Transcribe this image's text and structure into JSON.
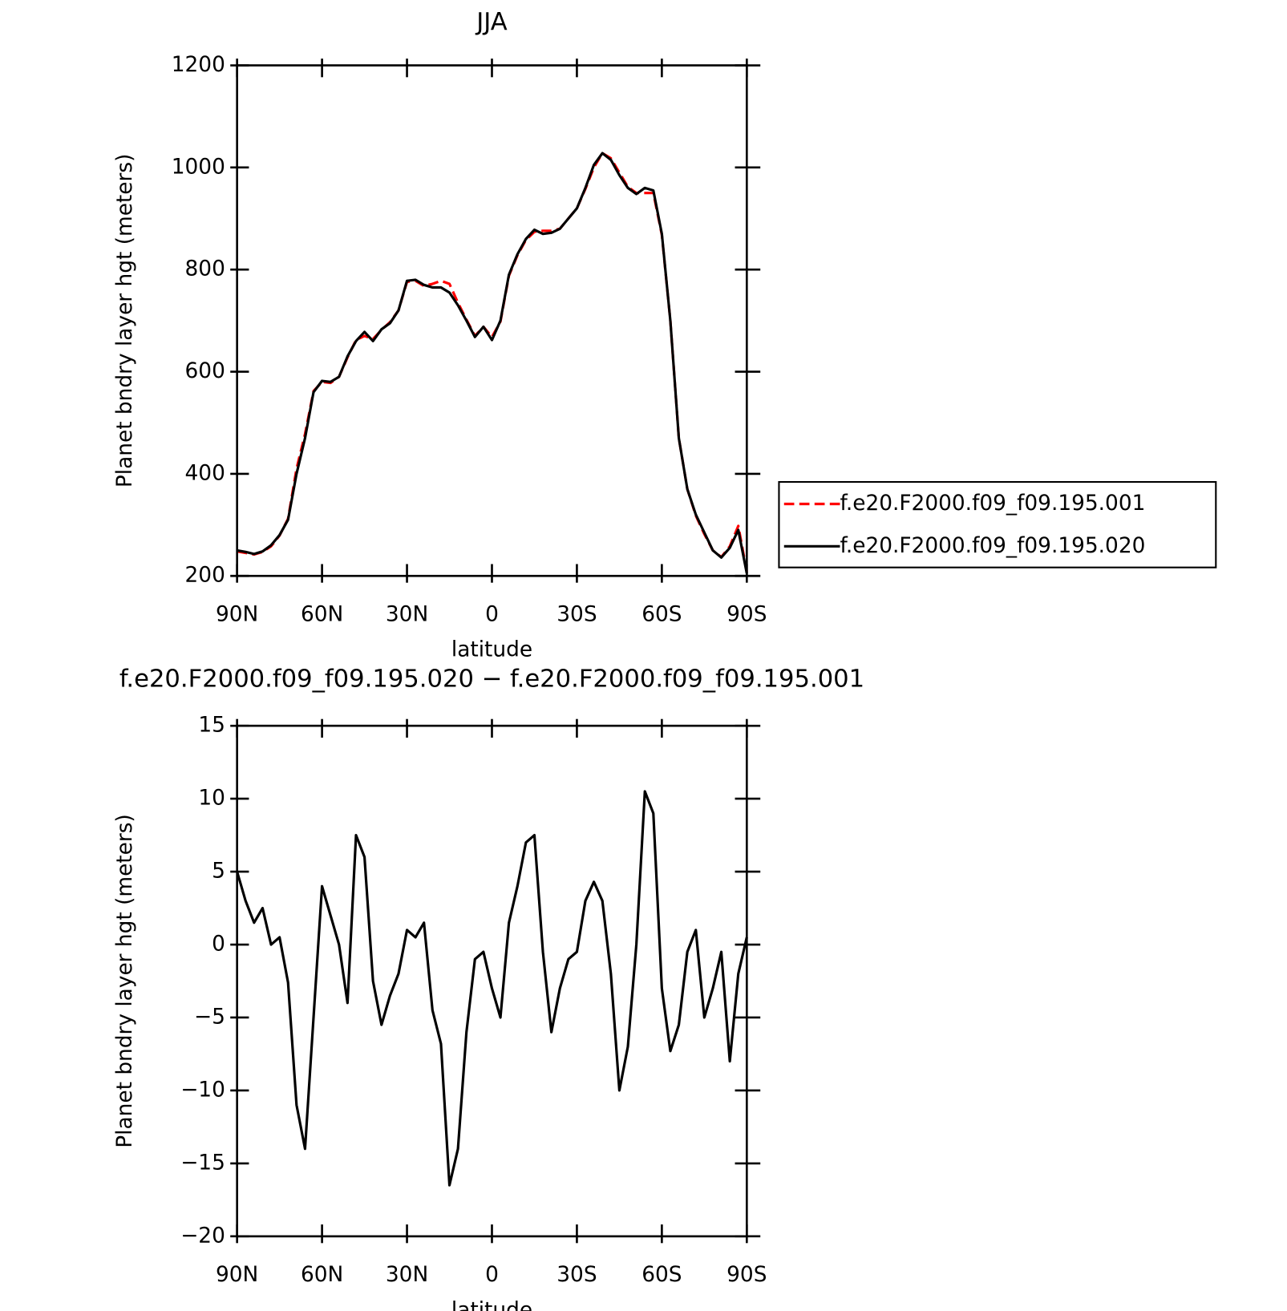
{
  "chart_data": [
    {
      "type": "line",
      "title": "JJA",
      "xlabel": "latitude",
      "ylabel": "Planet bndry layer hgt (meters)",
      "x": [
        90,
        87,
        84,
        81,
        78,
        75,
        72,
        69,
        66,
        63,
        60,
        57,
        54,
        51,
        48,
        45,
        42,
        39,
        36,
        33,
        30,
        27,
        24,
        21,
        18,
        15,
        12,
        9,
        6,
        3,
        0,
        -3,
        -6,
        -9,
        -12,
        -15,
        -18,
        -21,
        -24,
        -27,
        -30,
        -33,
        -36,
        -39,
        -42,
        -45,
        -48,
        -51,
        -54,
        -57,
        -60,
        -63,
        -66,
        -69,
        -72,
        -75,
        -78,
        -81,
        -84,
        -87,
        -90
      ],
      "xlim": [
        90,
        -90
      ],
      "xticks": [
        {
          "value": 90,
          "label": "90N"
        },
        {
          "value": 60,
          "label": "60N"
        },
        {
          "value": 30,
          "label": "30N"
        },
        0,
        {
          "value": -30,
          "label": "30S"
        },
        {
          "value": -60,
          "label": "60S"
        },
        {
          "value": -90,
          "label": "90S"
        }
      ],
      "ylim": [
        200,
        1200
      ],
      "yticks": [
        200,
        400,
        600,
        800,
        1000,
        1200
      ],
      "legend": "right",
      "series": [
        {
          "name": "f.e20.F2000.f09_f09.195.001",
          "color": "#ff0000",
          "dashed": true,
          "values": [
            248,
            245,
            242,
            247,
            258,
            279,
            312,
            410,
            478,
            562,
            580,
            578,
            590,
            628,
            662,
            670,
            664,
            682,
            697,
            720,
            776,
            778,
            768,
            772,
            778,
            772,
            735,
            702,
            670,
            688,
            668,
            698,
            788,
            828,
            858,
            874,
            876,
            876,
            880,
            900,
            920,
            958,
            1000,
            1028,
            1018,
            990,
            962,
            950,
            950,
            950,
            868,
            700,
            470,
            370,
            318,
            282,
            250,
            237,
            258,
            298,
            208
          ]
        },
        {
          "name": "f.e20.F2000.f09_f09.195.020",
          "color": "#000000",
          "dashed": false,
          "values": [
            250,
            247,
            243,
            248,
            260,
            280,
            310,
            400,
            470,
            560,
            582,
            580,
            590,
            630,
            660,
            678,
            660,
            683,
            695,
            720,
            778,
            780,
            770,
            765,
            765,
            755,
            730,
            700,
            668,
            688,
            662,
            700,
            790,
            830,
            860,
            878,
            870,
            872,
            880,
            900,
            920,
            960,
            1005,
            1028,
            1015,
            985,
            960,
            948,
            960,
            955,
            870,
            700,
            470,
            370,
            320,
            285,
            250,
            236,
            255,
            290,
            205
          ]
        }
      ]
    },
    {
      "type": "line",
      "title": "f.e20.F2000.f09_f09.195.020 − f.e20.F2000.f09_f09.195.001",
      "xlabel": "latitude",
      "ylabel": "Planet bndry layer hgt (meters)",
      "x": [
        90,
        87,
        84,
        81,
        78,
        75,
        72,
        69,
        66,
        63,
        60,
        57,
        54,
        51,
        48,
        45,
        42,
        39,
        36,
        33,
        30,
        27,
        24,
        21,
        18,
        15,
        12,
        9,
        6,
        3,
        0,
        -3,
        -6,
        -9,
        -12,
        -15,
        -18,
        -21,
        -24,
        -27,
        -30,
        -33,
        -36,
        -39,
        -42,
        -45,
        -48,
        -51,
        -54,
        -57,
        -60,
        -63,
        -66,
        -69,
        -72,
        -75,
        -78,
        -81,
        -84,
        -87,
        -90
      ],
      "xlim": [
        90,
        -90
      ],
      "xticks": [
        {
          "value": 90,
          "label": "90N"
        },
        {
          "value": 60,
          "label": "60N"
        },
        {
          "value": 30,
          "label": "30N"
        },
        0,
        {
          "value": -30,
          "label": "30S"
        },
        {
          "value": -60,
          "label": "60S"
        },
        {
          "value": -90,
          "label": "90S"
        }
      ],
      "ylim": [
        -20,
        15
      ],
      "yticks": [
        {
          "value": -20,
          "label": "−20"
        },
        {
          "value": -15,
          "label": "−15"
        },
        {
          "value": -10,
          "label": "−10"
        },
        {
          "value": -5,
          "label": "−5"
        },
        0,
        5,
        10,
        15
      ],
      "series": [
        {
          "color": "#000000",
          "dashed": false,
          "values": [
            5,
            3,
            1.5,
            2.5,
            0,
            0.5,
            -2.6,
            -11,
            -14,
            -5,
            4,
            2,
            0,
            -4,
            7.5,
            6,
            -2.5,
            -5.5,
            -3.5,
            -2,
            1,
            0.5,
            1.5,
            -4.5,
            -6.8,
            -16.5,
            -14,
            -6,
            -1,
            -0.5,
            -3,
            -5,
            1.5,
            4,
            7,
            7.5,
            -0.5,
            -6,
            -3,
            -1,
            -0.5,
            3,
            4.3,
            3,
            -2,
            -10,
            -7,
            0,
            10.5,
            9,
            -3,
            -7.3,
            -5.5,
            -0.5,
            1,
            -5,
            -3,
            -0.5,
            -8,
            -2,
            0.5
          ]
        }
      ]
    }
  ]
}
